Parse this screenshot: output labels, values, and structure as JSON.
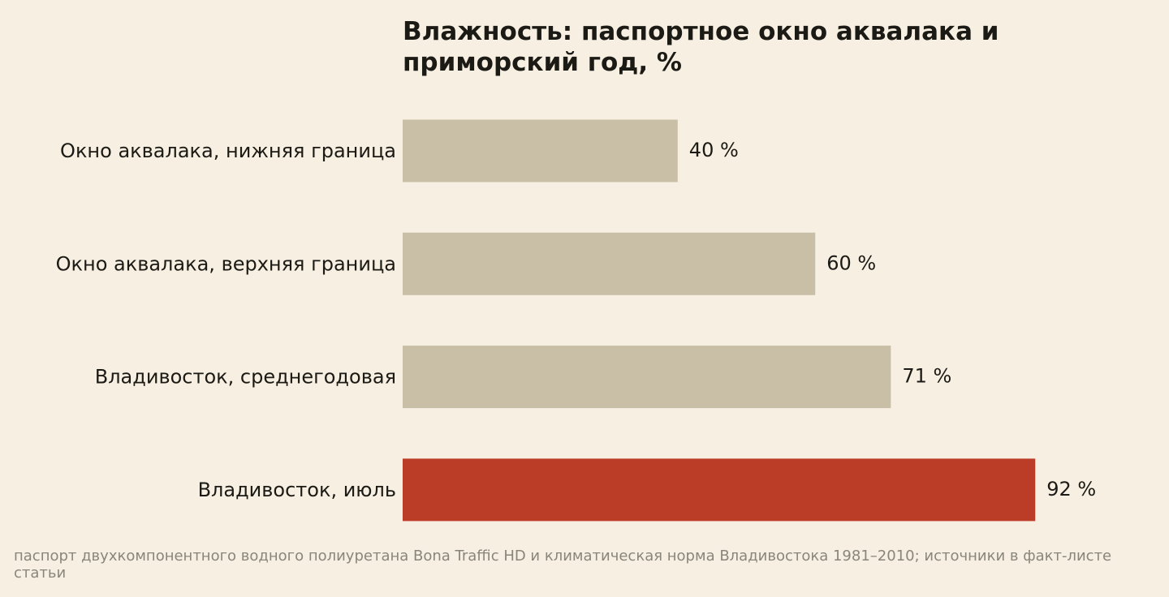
{
  "chart_data": {
    "type": "bar",
    "orientation": "horizontal",
    "title": "Влажность: паспортное окно аквалака и приморский год, %",
    "categories": [
      "Окно аквалака, нижняя граница",
      "Окно аквалака, верхняя граница",
      "Владивосток, среднегодовая",
      "Владивосток, июль"
    ],
    "values": [
      40,
      60,
      71,
      92
    ],
    "value_labels": [
      "40 %",
      "60 %",
      "71 %",
      "92 %"
    ],
    "xlim": [
      0,
      100
    ],
    "grid": false,
    "legend": "none",
    "highlight_index": 3
  },
  "source_note": "паспорт двухкомпонентного водного полиуретана Bona Traffic HD и климатическая норма Владивостока 1981–2010; источники в факт-листе статьи",
  "colors": {
    "background": "#f6efe2",
    "bar_default": "#c9bfa7",
    "bar_highlight": "#bc3d27",
    "text": "#1c1a15",
    "muted_text": "#8a857b"
  }
}
